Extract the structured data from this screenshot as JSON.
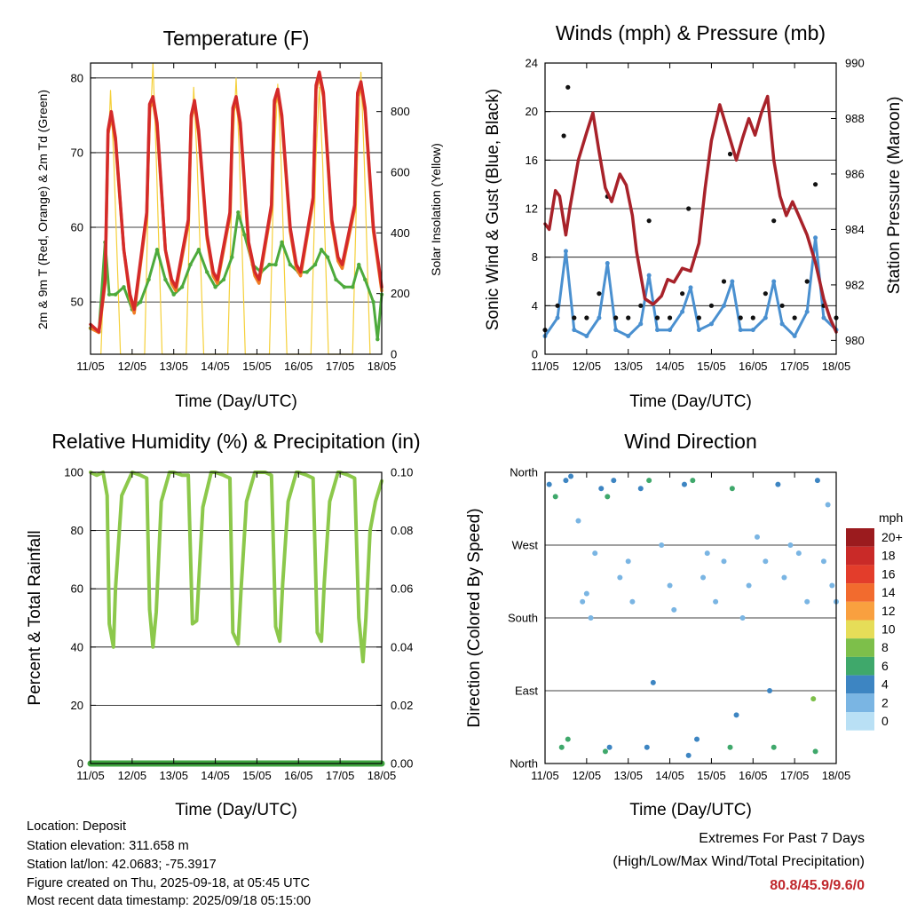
{
  "chart_data": [
    {
      "id": "temperature",
      "type": "line",
      "title": "Temperature (F)",
      "xlabel": "Time (Day/UTC)",
      "ylabel": "2m & 9m T (Red, Orange) & 2m Td (Green)",
      "y2label": "Solar Insolation (Yellow)",
      "x_ticks": [
        "11/05",
        "12/05",
        "13/05",
        "14/05",
        "15/05",
        "16/05",
        "17/05",
        "18/05"
      ],
      "xlim": [
        0,
        7
      ],
      "ylim": [
        43,
        82
      ],
      "y_ticks": [
        50,
        60,
        70,
        80
      ],
      "y2lim": [
        0,
        960
      ],
      "y2_ticks": [
        0,
        200,
        400,
        600,
        800
      ],
      "colors": {
        "t2m": "#d42a2a",
        "t9m": "#f07d24",
        "td": "#4daa3c",
        "solar": "#f5d03a"
      },
      "series": [
        {
          "name": "2m T",
          "axis": "left",
          "x": [
            0,
            0.2,
            0.35,
            0.42,
            0.5,
            0.6,
            0.8,
            0.95,
            1.05,
            1.35,
            1.42,
            1.5,
            1.6,
            1.8,
            1.95,
            2.05,
            2.35,
            2.42,
            2.5,
            2.6,
            2.8,
            2.95,
            3.05,
            3.35,
            3.42,
            3.5,
            3.6,
            3.8,
            3.95,
            4.05,
            4.35,
            4.42,
            4.5,
            4.6,
            4.8,
            4.95,
            5.05,
            5.35,
            5.42,
            5.5,
            5.6,
            5.8,
            5.95,
            6.05,
            6.35,
            6.42,
            6.5,
            6.6,
            6.8,
            6.95,
            7.0
          ],
          "values": [
            47,
            46,
            53,
            73,
            75.5,
            72,
            57,
            51,
            49,
            62,
            76.5,
            77.5,
            74,
            57,
            53,
            52,
            61,
            75,
            77,
            73,
            59,
            54,
            53,
            62,
            76,
            77.5,
            74,
            58,
            54,
            53,
            63,
            77,
            78.5,
            75,
            60,
            55,
            54,
            64,
            79,
            80.8,
            78,
            61,
            56,
            55,
            63,
            78,
            79.5,
            76,
            60,
            54,
            52
          ]
        },
        {
          "name": "9m T",
          "axis": "left",
          "x": [
            0,
            0.2,
            0.35,
            0.42,
            0.5,
            0.6,
            0.8,
            0.95,
            1.05,
            1.35,
            1.42,
            1.5,
            1.6,
            1.8,
            1.95,
            2.05,
            2.35,
            2.42,
            2.5,
            2.6,
            2.8,
            2.95,
            3.05,
            3.35,
            3.42,
            3.5,
            3.6,
            3.8,
            3.95,
            4.05,
            4.35,
            4.42,
            4.5,
            4.6,
            4.8,
            4.95,
            5.05,
            5.35,
            5.42,
            5.5,
            5.6,
            5.8,
            5.95,
            6.05,
            6.35,
            6.42,
            6.5,
            6.6,
            6.8,
            6.95,
            7.0
          ],
          "values": [
            46.5,
            45.9,
            52.5,
            72.5,
            75,
            71.5,
            57,
            50.5,
            48.5,
            61.5,
            76,
            77,
            73.5,
            57,
            52.5,
            51.5,
            60.5,
            74.5,
            76.5,
            72.5,
            58.5,
            53.5,
            52.5,
            61.5,
            75.5,
            77,
            73.5,
            57.5,
            53.5,
            52.5,
            62.5,
            76.5,
            78,
            74.5,
            59.5,
            54.5,
            53.5,
            63.5,
            78.5,
            80.3,
            77.5,
            60.5,
            55.5,
            54.5,
            62.5,
            77.5,
            79,
            75.5,
            59.5,
            53.5,
            51.5
          ]
        },
        {
          "name": "2m Td",
          "axis": "left",
          "x": [
            0,
            0.2,
            0.35,
            0.45,
            0.6,
            0.8,
            1.0,
            1.2,
            1.4,
            1.6,
            1.8,
            2.0,
            2.2,
            2.4,
            2.6,
            2.8,
            3.0,
            3.2,
            3.4,
            3.55,
            3.7,
            3.9,
            4.1,
            4.3,
            4.45,
            4.6,
            4.8,
            5.0,
            5.2,
            5.4,
            5.55,
            5.7,
            5.9,
            6.1,
            6.3,
            6.45,
            6.6,
            6.8,
            6.9,
            7.0
          ],
          "values": [
            46.5,
            46,
            58,
            51,
            51,
            52,
            49,
            50,
            53,
            57,
            53,
            51,
            52,
            55,
            57,
            54,
            52,
            53,
            56,
            62,
            59,
            55,
            54,
            55,
            55,
            58,
            55,
            54,
            54,
            55,
            57,
            56,
            53,
            52,
            52,
            55,
            53,
            50,
            45,
            51
          ]
        },
        {
          "name": "Solar Insolation",
          "axis": "right",
          "x": [
            0.25,
            0.42,
            0.48,
            0.56,
            0.72,
            1.3,
            1.42,
            1.5,
            1.58,
            1.72,
            2.3,
            2.42,
            2.48,
            2.56,
            2.72,
            3.3,
            3.42,
            3.5,
            3.58,
            3.72,
            4.3,
            4.42,
            4.5,
            4.58,
            4.72,
            5.3,
            5.42,
            5.5,
            5.58,
            5.72,
            6.3,
            6.42,
            6.5,
            6.58,
            6.72
          ],
          "values": [
            0,
            650,
            870,
            640,
            0,
            0,
            700,
            960,
            650,
            0,
            0,
            660,
            880,
            640,
            0,
            0,
            670,
            910,
            650,
            0,
            0,
            660,
            890,
            640,
            0,
            0,
            650,
            880,
            630,
            0,
            0,
            660,
            930,
            640,
            0
          ]
        }
      ]
    },
    {
      "id": "winds",
      "type": "scatter",
      "title": "Winds (mph) & Pressure (mb)",
      "xlabel": "Time (Day/UTC)",
      "ylabel": "Sonic Wind & Gust (Blue, Black)",
      "y2label": "Station Pressure (Maroon)",
      "x_ticks": [
        "11/05",
        "12/05",
        "13/05",
        "14/05",
        "15/05",
        "16/05",
        "17/05",
        "18/05"
      ],
      "xlim": [
        0,
        7
      ],
      "ylim": [
        0,
        24
      ],
      "y_ticks": [
        0,
        4,
        8,
        12,
        16,
        20,
        24
      ],
      "y2lim": [
        979.5,
        990
      ],
      "y2_ticks": [
        980,
        982,
        984,
        986,
        988,
        990
      ],
      "colors": {
        "wind": "#4a90d0",
        "gust": "#111111",
        "pressure": "#a8222a"
      },
      "series": [
        {
          "name": "Sonic Wind",
          "axis": "left",
          "x": [
            0,
            0.3,
            0.5,
            0.7,
            1.0,
            1.3,
            1.5,
            1.7,
            2.0,
            2.3,
            2.5,
            2.7,
            3.0,
            3.3,
            3.5,
            3.7,
            4.0,
            4.3,
            4.5,
            4.7,
            5.0,
            5.3,
            5.5,
            5.7,
            6.0,
            6.3,
            6.5,
            6.7,
            7.0
          ],
          "values": [
            1.5,
            3,
            8.5,
            2,
            1.5,
            3,
            7.5,
            2,
            1.5,
            2.5,
            6.5,
            2,
            2,
            3.5,
            5.5,
            2,
            2.5,
            4,
            6,
            2,
            2,
            3,
            6,
            2.5,
            1.5,
            3.5,
            9.6,
            3,
            2
          ]
        },
        {
          "name": "Gust",
          "axis": "left",
          "x": [
            0,
            0.3,
            0.45,
            0.55,
            0.7,
            1.0,
            1.3,
            1.5,
            1.7,
            2.0,
            2.3,
            2.5,
            2.7,
            3.0,
            3.3,
            3.45,
            3.7,
            4.0,
            4.3,
            4.45,
            4.7,
            5.0,
            5.3,
            5.5,
            5.7,
            6.0,
            6.3,
            6.5,
            6.7,
            7.0
          ],
          "values": [
            2,
            4,
            18,
            22,
            3,
            3,
            5,
            13,
            3,
            3,
            4,
            11,
            3,
            3,
            5,
            12,
            3,
            4,
            6,
            16.5,
            3,
            3,
            5,
            11,
            4,
            3,
            6,
            14,
            4,
            3
          ]
        },
        {
          "name": "Station Pressure",
          "axis": "right",
          "x": [
            0,
            0.1,
            0.25,
            0.35,
            0.5,
            0.6,
            0.8,
            1.0,
            1.15,
            1.3,
            1.45,
            1.6,
            1.8,
            1.95,
            2.1,
            2.2,
            2.4,
            2.6,
            2.8,
            2.95,
            3.1,
            3.3,
            3.5,
            3.7,
            3.85,
            4.0,
            4.2,
            4.4,
            4.6,
            4.75,
            4.9,
            5.05,
            5.2,
            5.35,
            5.5,
            5.65,
            5.8,
            5.95,
            6.1,
            6.3,
            6.5,
            6.7,
            6.85,
            7.0
          ],
          "values": [
            984.2,
            984,
            985.4,
            985.2,
            983.8,
            984.8,
            986.5,
            987.5,
            988.2,
            986.8,
            985.5,
            985,
            986,
            985.6,
            984.5,
            983.2,
            981.5,
            981.3,
            981.6,
            982.2,
            982.1,
            982.6,
            982.5,
            983.5,
            985.5,
            987.2,
            988.5,
            987.5,
            986.5,
            987.3,
            988,
            987.4,
            988.2,
            988.8,
            986.5,
            985.2,
            984.5,
            985,
            984.5,
            983.8,
            982.8,
            981.5,
            980.8,
            980.3
          ]
        }
      ]
    },
    {
      "id": "humidity",
      "type": "line",
      "title": "Relative Humidity (%) & Precipitation (in)",
      "xlabel": "Time (Day/UTC)",
      "ylabel": "Percent & Total Rainfall",
      "x_ticks": [
        "11/05",
        "12/05",
        "13/05",
        "14/05",
        "15/05",
        "16/05",
        "17/05",
        "18/05"
      ],
      "xlim": [
        0,
        7
      ],
      "ylim": [
        0,
        100
      ],
      "y_ticks": [
        0,
        20,
        40,
        60,
        80,
        100
      ],
      "y2lim": [
        0,
        0.1
      ],
      "y2_ticks": [
        "0.00",
        "0.02",
        "0.04",
        "0.06",
        "0.08",
        "0.10"
      ],
      "colors": {
        "rh": "#8cc84b",
        "precip": "#3fa43f"
      },
      "series": [
        {
          "name": "Relative Humidity",
          "axis": "left",
          "x": [
            0,
            0.15,
            0.3,
            0.4,
            0.45,
            0.55,
            0.6,
            0.75,
            1.0,
            1.2,
            1.35,
            1.42,
            1.5,
            1.58,
            1.7,
            1.9,
            2.0,
            2.2,
            2.35,
            2.45,
            2.55,
            2.7,
            2.9,
            3.0,
            3.2,
            3.35,
            3.42,
            3.55,
            3.62,
            3.75,
            3.95,
            4.0,
            4.2,
            4.35,
            4.45,
            4.55,
            4.62,
            4.75,
            4.95,
            5.0,
            5.2,
            5.35,
            5.45,
            5.55,
            5.62,
            5.75,
            5.95,
            6.0,
            6.2,
            6.35,
            6.45,
            6.55,
            6.62,
            6.72,
            6.85,
            7.0
          ],
          "values": [
            100,
            99,
            100,
            92,
            48,
            40,
            60,
            92,
            100,
            99,
            98,
            53,
            40,
            52,
            90,
            100,
            100,
            99,
            99,
            48,
            49,
            88,
            100,
            100,
            99,
            98,
            45,
            41,
            60,
            90,
            100,
            100,
            100,
            99,
            47,
            42,
            62,
            90,
            100,
            100,
            99,
            98,
            45,
            42,
            62,
            90,
            100,
            100,
            99,
            98,
            50,
            35,
            50,
            80,
            90,
            97
          ]
        },
        {
          "name": "Total Precipitation",
          "axis": "right",
          "x": [
            0,
            7
          ],
          "values": [
            0,
            0
          ]
        }
      ]
    },
    {
      "id": "wind_direction",
      "type": "scatter",
      "title": "Wind Direction",
      "xlabel": "Time (Day/UTC)",
      "ylabel": "Direction (Colored By Speed)",
      "x_ticks": [
        "11/05",
        "12/05",
        "13/05",
        "14/05",
        "15/05",
        "16/05",
        "17/05",
        "18/05"
      ],
      "xlim": [
        0,
        7
      ],
      "ylim": [
        0,
        360
      ],
      "y_ticks": [
        "North",
        "East",
        "South",
        "West",
        "North"
      ],
      "legend_title": "mph",
      "legend_labels": [
        "20+",
        "18",
        "16",
        "14",
        "12",
        "10",
        "8",
        "6",
        "4",
        "2",
        "0"
      ],
      "legend_colors": [
        "#9b1b1e",
        "#c92a28",
        "#e33d2b",
        "#f26b2e",
        "#f9a03f",
        "#e6dd58",
        "#7dbf4a",
        "#3fa86b",
        "#3d85c2",
        "#7ab5e3",
        "#b9e0f5"
      ],
      "legend_placement": "right",
      "series": [
        {
          "name": "Wind Direction",
          "x": [
            0.1,
            0.25,
            0.4,
            0.5,
            0.55,
            0.62,
            0.8,
            0.9,
            1.0,
            1.1,
            1.2,
            1.35,
            1.45,
            1.5,
            1.55,
            1.65,
            1.8,
            2.0,
            2.1,
            2.3,
            2.45,
            2.5,
            2.6,
            2.8,
            3.0,
            3.1,
            3.35,
            3.45,
            3.55,
            3.65,
            3.8,
            3.9,
            4.1,
            4.3,
            4.45,
            4.5,
            4.6,
            4.75,
            4.9,
            5.1,
            5.3,
            5.4,
            5.5,
            5.6,
            5.75,
            5.9,
            6.1,
            6.3,
            6.45,
            6.5,
            6.55,
            6.7,
            6.8,
            6.9,
            7.0
          ],
          "values": [
            345,
            330,
            20,
            350,
            30,
            355,
            300,
            200,
            210,
            180,
            260,
            340,
            15,
            330,
            20,
            350,
            230,
            250,
            200,
            340,
            20,
            350,
            100,
            270,
            220,
            190,
            345,
            10,
            350,
            30,
            230,
            260,
            200,
            250,
            20,
            340,
            60,
            180,
            220,
            280,
            250,
            90,
            20,
            345,
            230,
            270,
            260,
            200,
            80,
            15,
            350,
            250,
            320,
            220,
            200
          ],
          "speed": [
            3,
            5,
            6,
            4,
            6,
            3,
            2,
            1,
            1,
            2,
            2,
            4,
            5,
            6,
            4,
            3,
            1,
            1,
            2,
            4,
            4,
            6,
            3,
            1,
            1,
            2,
            4,
            4,
            6,
            3,
            1,
            2,
            1,
            2,
            5,
            6,
            4,
            2,
            1,
            1,
            2,
            4,
            5,
            4,
            2,
            1,
            1,
            2,
            7,
            6,
            4,
            2,
            1,
            2,
            1
          ]
        }
      ]
    }
  ],
  "info": {
    "location": "Location: Deposit",
    "elevation": "Station elevation: 311.658 m",
    "latlon": "Station lat/lon: 42.0683; -75.3917",
    "created": "Figure created on Thu, 2025-09-18, at 05:45 UTC",
    "recent": "Most recent data timestamp: 2025/09/18 05:15:00"
  },
  "extremes": {
    "title": "Extremes For Past 7 Days",
    "subtitle": "(High/Low/Max Wind/Total Precipitation)",
    "values": "80.8/45.9/9.6/0"
  }
}
